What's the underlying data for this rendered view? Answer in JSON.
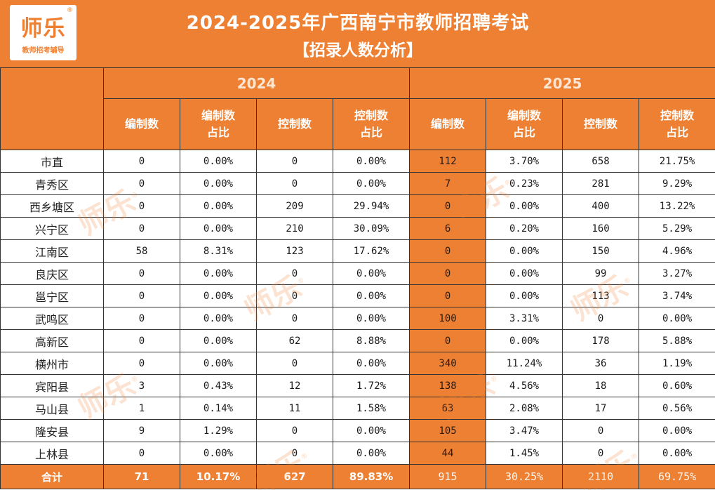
{
  "logo": {
    "main": "师乐",
    "mark": "®",
    "sub": "教师招考辅导"
  },
  "title": {
    "line1": "2024-2025年广西南宁市教师招聘考试",
    "line2": "【招录人数分析】"
  },
  "years": [
    "2024",
    "2025"
  ],
  "columns": [
    "编制数",
    "编制数\n占比",
    "控制数",
    "控制数\n占比",
    "编制数",
    "编制数\n占比",
    "控制数",
    "控制数\n占比"
  ],
  "rows": [
    {
      "region": "市直",
      "values": [
        "0",
        "0.00%",
        "0",
        "0.00%",
        "112",
        "3.70%",
        "658",
        "21.75%"
      ]
    },
    {
      "region": "青秀区",
      "values": [
        "0",
        "0.00%",
        "0",
        "0.00%",
        "7",
        "0.23%",
        "281",
        "9.29%"
      ]
    },
    {
      "region": "西乡塘区",
      "values": [
        "0",
        "0.00%",
        "209",
        "29.94%",
        "0",
        "0.00%",
        "400",
        "13.22%"
      ]
    },
    {
      "region": "兴宁区",
      "values": [
        "0",
        "0.00%",
        "210",
        "30.09%",
        "6",
        "0.20%",
        "160",
        "5.29%"
      ]
    },
    {
      "region": "江南区",
      "values": [
        "58",
        "8.31%",
        "123",
        "17.62%",
        "0",
        "0.00%",
        "150",
        "4.96%"
      ]
    },
    {
      "region": "良庆区",
      "values": [
        "0",
        "0.00%",
        "0",
        "0.00%",
        "0",
        "0.00%",
        "99",
        "3.27%"
      ]
    },
    {
      "region": "邕宁区",
      "values": [
        "0",
        "0.00%",
        "0",
        "0.00%",
        "0",
        "0.00%",
        "113",
        "3.74%"
      ]
    },
    {
      "region": "武鸣区",
      "values": [
        "0",
        "0.00%",
        "0",
        "0.00%",
        "100",
        "3.31%",
        "0",
        "0.00%"
      ]
    },
    {
      "region": "高新区",
      "values": [
        "0",
        "0.00%",
        "62",
        "8.88%",
        "0",
        "0.00%",
        "178",
        "5.88%"
      ]
    },
    {
      "region": "横州市",
      "values": [
        "0",
        "0.00%",
        "0",
        "0.00%",
        "340",
        "11.24%",
        "36",
        "1.19%"
      ]
    },
    {
      "region": "宾阳县",
      "values": [
        "3",
        "0.43%",
        "12",
        "1.72%",
        "138",
        "4.56%",
        "18",
        "0.60%"
      ]
    },
    {
      "region": "马山县",
      "values": [
        "1",
        "0.14%",
        "11",
        "1.58%",
        "63",
        "2.08%",
        "17",
        "0.56%"
      ]
    },
    {
      "region": "隆安县",
      "values": [
        "9",
        "1.29%",
        "0",
        "0.00%",
        "105",
        "3.47%",
        "0",
        "0.00%"
      ]
    },
    {
      "region": "上林县",
      "values": [
        "0",
        "0.00%",
        "0",
        "0.00%",
        "44",
        "1.45%",
        "0",
        "0.00%"
      ]
    }
  ],
  "total": {
    "label": "合计",
    "values": [
      "71",
      "10.17%",
      "627",
      "89.83%",
      "915",
      "30.25%",
      "2110",
      "69.75%"
    ]
  },
  "watermark": "师乐",
  "colors": {
    "accent": "#ee8033",
    "header_text_dim": "#fde6d3",
    "border": "#333333"
  }
}
